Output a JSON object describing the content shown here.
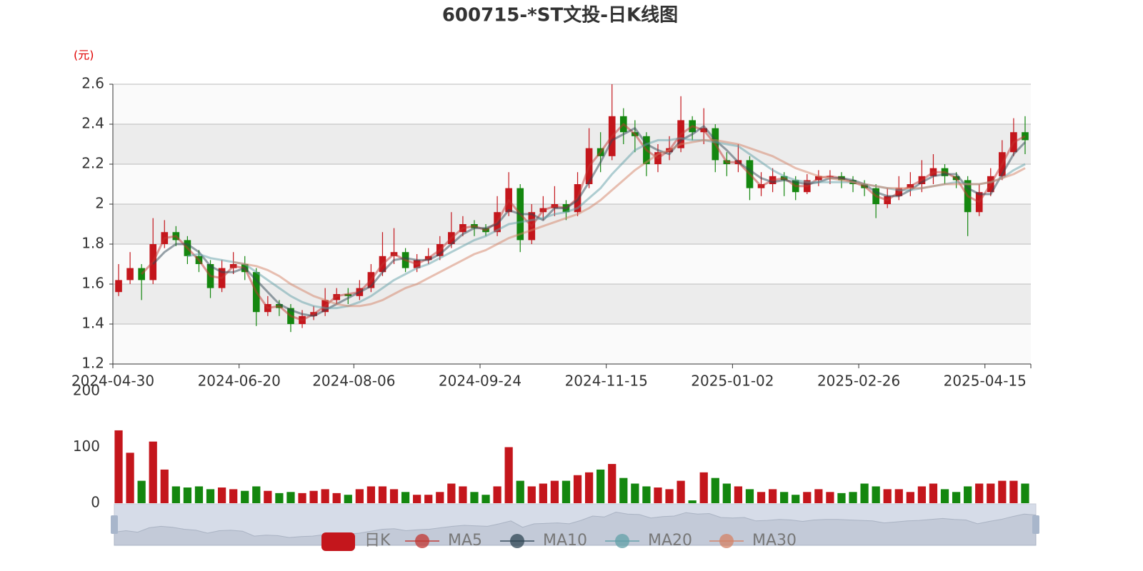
{
  "chart_data": {
    "type": "candlestick",
    "title": "600715-*ST文投-日K线图",
    "y_label": "(元)",
    "legend_name": "日K",
    "legend_position": "bottom",
    "up_color": "#c4161c",
    "down_color": "#14870f",
    "categories": [
      "2024-04-30",
      null,
      null,
      null,
      null,
      null,
      null,
      null,
      null,
      null,
      null,
      "2024-06-20",
      null,
      null,
      null,
      null,
      null,
      null,
      null,
      null,
      null,
      "2024-08-06",
      null,
      null,
      null,
      null,
      null,
      null,
      null,
      null,
      null,
      null,
      "2024-09-24",
      null,
      null,
      null,
      null,
      null,
      null,
      null,
      null,
      null,
      null,
      "2024-11-15",
      null,
      null,
      null,
      null,
      null,
      null,
      null,
      null,
      null,
      null,
      "2025-01-02",
      null,
      null,
      null,
      null,
      null,
      null,
      null,
      null,
      null,
      null,
      "2025-02-26",
      null,
      null,
      null,
      null,
      null,
      null,
      null,
      null,
      null,
      null,
      "2025-04-15",
      null,
      null,
      null
    ],
    "values": [
      [
        1.56,
        1.62,
        1.54,
        1.7
      ],
      [
        1.62,
        1.68,
        1.6,
        1.76
      ],
      [
        1.68,
        1.62,
        1.52,
        1.7
      ],
      [
        1.62,
        1.8,
        1.6,
        1.93
      ],
      [
        1.8,
        1.86,
        1.78,
        1.92
      ],
      [
        1.86,
        1.82,
        1.79,
        1.89
      ],
      [
        1.82,
        1.74,
        1.7,
        1.84
      ],
      [
        1.74,
        1.7,
        1.66,
        1.77
      ],
      [
        1.7,
        1.58,
        1.53,
        1.72
      ],
      [
        1.58,
        1.68,
        1.56,
        1.72
      ],
      [
        1.68,
        1.7,
        1.65,
        1.76
      ],
      [
        1.7,
        1.66,
        1.62,
        1.74
      ],
      [
        1.66,
        1.46,
        1.39,
        1.68
      ],
      [
        1.46,
        1.5,
        1.44,
        1.54
      ],
      [
        1.5,
        1.48,
        1.44,
        1.52
      ],
      [
        1.48,
        1.4,
        1.36,
        1.5
      ],
      [
        1.4,
        1.44,
        1.38,
        1.47
      ],
      [
        1.44,
        1.46,
        1.42,
        1.49
      ],
      [
        1.46,
        1.52,
        1.44,
        1.58
      ],
      [
        1.52,
        1.55,
        1.5,
        1.58
      ],
      [
        1.55,
        1.54,
        1.5,
        1.58
      ],
      [
        1.54,
        1.58,
        1.52,
        1.62
      ],
      [
        1.58,
        1.66,
        1.56,
        1.7
      ],
      [
        1.66,
        1.74,
        1.64,
        1.86
      ],
      [
        1.74,
        1.76,
        1.7,
        1.88
      ],
      [
        1.76,
        1.68,
        1.66,
        1.78
      ],
      [
        1.68,
        1.72,
        1.66,
        1.75
      ],
      [
        1.72,
        1.74,
        1.7,
        1.78
      ],
      [
        1.74,
        1.8,
        1.72,
        1.84
      ],
      [
        1.8,
        1.86,
        1.78,
        1.96
      ],
      [
        1.86,
        1.9,
        1.84,
        1.94
      ],
      [
        1.9,
        1.88,
        1.84,
        1.92
      ],
      [
        1.88,
        1.86,
        1.84,
        1.9
      ],
      [
        1.86,
        1.96,
        1.84,
        2.04
      ],
      [
        1.96,
        2.08,
        1.94,
        2.16
      ],
      [
        2.08,
        1.82,
        1.76,
        2.1
      ],
      [
        1.82,
        1.96,
        1.8,
        2.0
      ],
      [
        1.96,
        1.98,
        1.92,
        2.04
      ],
      [
        1.98,
        2.0,
        1.94,
        2.09
      ],
      [
        2.0,
        1.96,
        1.92,
        2.02
      ],
      [
        1.96,
        2.1,
        1.94,
        2.16
      ],
      [
        2.1,
        2.28,
        2.08,
        2.38
      ],
      [
        2.28,
        2.24,
        2.16,
        2.36
      ],
      [
        2.24,
        2.44,
        2.22,
        2.6
      ],
      [
        2.44,
        2.36,
        2.3,
        2.48
      ],
      [
        2.36,
        2.34,
        2.26,
        2.42
      ],
      [
        2.34,
        2.2,
        2.14,
        2.36
      ],
      [
        2.2,
        2.26,
        2.16,
        2.3
      ],
      [
        2.26,
        2.28,
        2.22,
        2.34
      ],
      [
        2.28,
        2.42,
        2.26,
        2.54
      ],
      [
        2.42,
        2.36,
        2.32,
        2.44
      ],
      [
        2.36,
        2.38,
        2.3,
        2.48
      ],
      [
        2.38,
        2.22,
        2.16,
        2.4
      ],
      [
        2.22,
        2.2,
        2.14,
        2.26
      ],
      [
        2.2,
        2.22,
        2.16,
        2.3
      ],
      [
        2.22,
        2.08,
        2.02,
        2.24
      ],
      [
        2.08,
        2.1,
        2.04,
        2.16
      ],
      [
        2.1,
        2.14,
        2.06,
        2.18
      ],
      [
        2.14,
        2.12,
        2.04,
        2.16
      ],
      [
        2.12,
        2.06,
        2.02,
        2.14
      ],
      [
        2.06,
        2.12,
        2.05,
        2.15
      ],
      [
        2.12,
        2.14,
        2.09,
        2.17
      ],
      [
        2.14,
        2.14,
        2.1,
        2.17
      ],
      [
        2.14,
        2.12,
        2.08,
        2.16
      ],
      [
        2.12,
        2.1,
        2.06,
        2.14
      ],
      [
        2.1,
        2.08,
        2.04,
        2.12
      ],
      [
        2.08,
        2.0,
        1.93,
        2.1
      ],
      [
        2.0,
        2.04,
        1.98,
        2.08
      ],
      [
        2.04,
        2.08,
        2.02,
        2.14
      ],
      [
        2.08,
        2.1,
        2.04,
        2.16
      ],
      [
        2.1,
        2.14,
        2.06,
        2.22
      ],
      [
        2.14,
        2.18,
        2.1,
        2.25
      ],
      [
        2.18,
        2.14,
        2.1,
        2.2
      ],
      [
        2.14,
        2.12,
        2.08,
        2.16
      ],
      [
        2.12,
        1.96,
        1.84,
        2.14
      ],
      [
        1.96,
        2.06,
        1.94,
        2.1
      ],
      [
        2.06,
        2.14,
        2.04,
        2.18
      ],
      [
        2.14,
        2.26,
        2.12,
        2.32
      ],
      [
        2.26,
        2.36,
        2.24,
        2.43
      ],
      [
        2.36,
        2.32,
        2.25,
        2.44
      ]
    ],
    "series": [
      {
        "name": "MA5",
        "color": "#c23531",
        "values": [
          null,
          null,
          1.65,
          1.71,
          1.83,
          1.84,
          1.78,
          1.72,
          1.64,
          1.63,
          1.69,
          1.68,
          1.56,
          1.48,
          1.49,
          1.44,
          1.42,
          1.45,
          1.49,
          1.54,
          1.55,
          1.56,
          1.62,
          1.7,
          1.75,
          1.72,
          1.7,
          1.73,
          1.77,
          1.83,
          1.88,
          1.89,
          1.87,
          1.91,
          2.02,
          1.95,
          1.89,
          1.97,
          1.99,
          1.98,
          2.03,
          2.19,
          2.26,
          2.34,
          2.4,
          2.35,
          2.27,
          2.23,
          2.27,
          2.35,
          2.39,
          2.37,
          2.3,
          2.21,
          2.21,
          2.15,
          2.09,
          2.12,
          2.13,
          2.09,
          2.09,
          2.13,
          2.14,
          2.13,
          2.11,
          2.09,
          2.04,
          2.02,
          2.06,
          2.09,
          2.12,
          2.16,
          2.16,
          2.13,
          2.04,
          2.01,
          2.1,
          2.2,
          2.31,
          2.34
        ]
      },
      {
        "name": "MA10",
        "color": "#2f4554",
        "values": [
          null,
          null,
          null,
          1.7,
          1.76,
          1.8,
          1.8,
          1.76,
          1.69,
          1.66,
          1.66,
          1.68,
          1.62,
          1.56,
          1.5,
          1.47,
          1.45,
          1.44,
          1.47,
          1.5,
          1.53,
          1.56,
          1.59,
          1.66,
          1.72,
          1.73,
          1.72,
          1.72,
          1.75,
          1.8,
          1.85,
          1.88,
          1.88,
          1.9,
          1.97,
          1.95,
          1.95,
          1.92,
          1.98,
          1.98,
          2.02,
          2.11,
          2.21,
          2.32,
          2.35,
          2.38,
          2.3,
          2.27,
          2.25,
          2.32,
          2.35,
          2.39,
          2.32,
          2.27,
          2.21,
          2.17,
          2.13,
          2.11,
          2.12,
          2.11,
          2.1,
          2.11,
          2.13,
          2.13,
          2.12,
          2.1,
          2.06,
          2.04,
          2.04,
          2.07,
          2.11,
          2.14,
          2.15,
          2.15,
          2.08,
          2.05,
          2.05,
          2.15,
          2.25,
          2.31
        ]
      },
      {
        "name": "MA20",
        "color": "#61a0a8",
        "values": [
          null,
          null,
          null,
          null,
          null,
          null,
          1.74,
          1.75,
          1.73,
          1.72,
          1.71,
          1.7,
          1.66,
          1.62,
          1.58,
          1.54,
          1.51,
          1.49,
          1.48,
          1.48,
          1.49,
          1.51,
          1.54,
          1.58,
          1.62,
          1.65,
          1.68,
          1.7,
          1.73,
          1.76,
          1.79,
          1.82,
          1.84,
          1.87,
          1.9,
          1.91,
          1.92,
          1.93,
          1.95,
          1.96,
          1.98,
          2.03,
          2.08,
          2.15,
          2.21,
          2.27,
          2.3,
          2.32,
          2.32,
          2.33,
          2.32,
          2.32,
          2.31,
          2.3,
          2.29,
          2.25,
          2.21,
          2.17,
          2.14,
          2.12,
          2.11,
          2.11,
          2.11,
          2.11,
          2.11,
          2.1,
          2.09,
          2.08,
          2.07,
          2.07,
          2.08,
          2.09,
          2.1,
          2.11,
          2.1,
          2.1,
          2.11,
          2.13,
          2.17,
          2.2
        ]
      },
      {
        "name": "MA30",
        "color": "#d48265",
        "values": [
          null,
          null,
          null,
          null,
          null,
          null,
          null,
          null,
          null,
          null,
          1.71,
          1.7,
          1.69,
          1.67,
          1.64,
          1.6,
          1.57,
          1.54,
          1.52,
          1.5,
          1.49,
          1.49,
          1.5,
          1.52,
          1.55,
          1.58,
          1.6,
          1.63,
          1.66,
          1.69,
          1.72,
          1.75,
          1.77,
          1.8,
          1.83,
          1.85,
          1.87,
          1.89,
          1.91,
          1.93,
          1.95,
          1.98,
          2.02,
          2.07,
          2.12,
          2.17,
          2.21,
          2.25,
          2.27,
          2.3,
          2.31,
          2.32,
          2.32,
          2.31,
          2.3,
          2.28,
          2.26,
          2.24,
          2.21,
          2.18,
          2.16,
          2.14,
          2.13,
          2.12,
          2.11,
          2.1,
          2.09,
          2.08,
          2.08,
          2.08,
          2.08,
          2.09,
          2.1,
          2.1,
          2.1,
          2.1,
          2.11,
          2.13,
          2.15,
          2.18
        ]
      }
    ],
    "ylim": [
      1.2,
      2.6
    ],
    "yticks": [
      1.2,
      1.4,
      1.6,
      1.8,
      2,
      2.2,
      2.4,
      2.6
    ],
    "grid": true,
    "volume": {
      "values": [
        130,
        90,
        40,
        110,
        60,
        30,
        28,
        30,
        25,
        28,
        25,
        22,
        30,
        22,
        18,
        20,
        18,
        22,
        25,
        18,
        15,
        25,
        30,
        30,
        25,
        20,
        15,
        15,
        20,
        35,
        30,
        20,
        15,
        30,
        100,
        40,
        30,
        35,
        40,
        40,
        50,
        55,
        60,
        70,
        45,
        35,
        30,
        28,
        25,
        40,
        5,
        55,
        45,
        35,
        30,
        25,
        20,
        25,
        20,
        15,
        20,
        25,
        20,
        18,
        20,
        35,
        30,
        25,
        25,
        20,
        30,
        35,
        25,
        20,
        30,
        35,
        35,
        40,
        40,
        35
      ],
      "ylim": [
        0,
        200
      ],
      "yticks": [
        0,
        100,
        200
      ]
    }
  }
}
